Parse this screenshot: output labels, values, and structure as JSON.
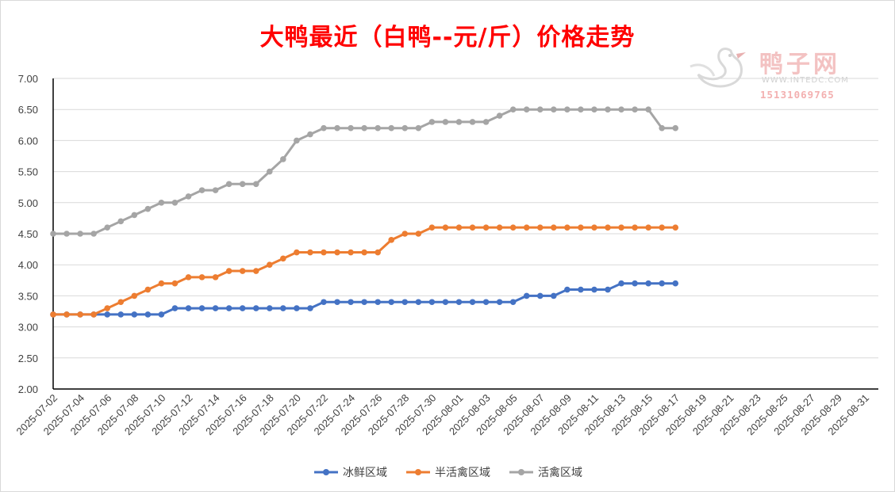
{
  "title": "大鸭最近（白鸭--元/斤）价格走势",
  "watermark": {
    "brand": "鸭子网",
    "url": "WWW.INTEDC.COM",
    "phone": "15131069765"
  },
  "chart_data": {
    "type": "line",
    "title": "大鸭最近（白鸭--元/斤）价格走势",
    "xlabel": "",
    "ylabel": "",
    "ylim": [
      2.0,
      7.0
    ],
    "yticks": [
      "7.00",
      "6.50",
      "6.00",
      "5.50",
      "5.00",
      "4.50",
      "4.00",
      "3.50",
      "3.00",
      "2.50",
      "2.00"
    ],
    "x_tick_labels": [
      "2025-07-02",
      "2025-07-04",
      "2025-07-06",
      "2025-07-08",
      "2025-07-10",
      "2025-07-12",
      "2025-07-14",
      "2025-07-16",
      "2025-07-18",
      "2025-07-20",
      "2025-07-22",
      "2025-07-24",
      "2025-07-26",
      "2025-07-28",
      "2025-07-30",
      "2025-08-01",
      "2025-08-03",
      "2025-08-05",
      "2025-08-07",
      "2025-08-09",
      "2025-08-11",
      "2025-08-13",
      "2025-08-15",
      "2025-08-17",
      "2025-08-19",
      "2025-08-21",
      "2025-08-23",
      "2025-08-25",
      "2025-08-27",
      "2025-08-29",
      "2025-08-31"
    ],
    "x_range": [
      "2025-07-02",
      "2025-08-31"
    ],
    "x": [
      "2025-07-02",
      "2025-07-03",
      "2025-07-04",
      "2025-07-05",
      "2025-07-06",
      "2025-07-07",
      "2025-07-08",
      "2025-07-09",
      "2025-07-10",
      "2025-07-11",
      "2025-07-12",
      "2025-07-13",
      "2025-07-14",
      "2025-07-15",
      "2025-07-16",
      "2025-07-17",
      "2025-07-18",
      "2025-07-19",
      "2025-07-20",
      "2025-07-21",
      "2025-07-22",
      "2025-07-23",
      "2025-07-24",
      "2025-07-25",
      "2025-07-26",
      "2025-07-27",
      "2025-07-28",
      "2025-07-29",
      "2025-07-30",
      "2025-07-31",
      "2025-08-01",
      "2025-08-02",
      "2025-08-03",
      "2025-08-04",
      "2025-08-05",
      "2025-08-06",
      "2025-08-07",
      "2025-08-08",
      "2025-08-09",
      "2025-08-10",
      "2025-08-11",
      "2025-08-12",
      "2025-08-13",
      "2025-08-14",
      "2025-08-15",
      "2025-08-16",
      "2025-08-17"
    ],
    "series": [
      {
        "name": "冰鲜区域",
        "color": "#4472c4",
        "values": [
          3.2,
          3.2,
          3.2,
          3.2,
          3.2,
          3.2,
          3.2,
          3.2,
          3.2,
          3.3,
          3.3,
          3.3,
          3.3,
          3.3,
          3.3,
          3.3,
          3.3,
          3.3,
          3.3,
          3.3,
          3.4,
          3.4,
          3.4,
          3.4,
          3.4,
          3.4,
          3.4,
          3.4,
          3.4,
          3.4,
          3.4,
          3.4,
          3.4,
          3.4,
          3.4,
          3.5,
          3.5,
          3.5,
          3.6,
          3.6,
          3.6,
          3.6,
          3.7,
          3.7,
          3.7,
          3.7,
          3.7
        ]
      },
      {
        "name": "半活禽区域",
        "color": "#ed7d31",
        "values": [
          3.2,
          3.2,
          3.2,
          3.2,
          3.3,
          3.4,
          3.5,
          3.6,
          3.7,
          3.7,
          3.8,
          3.8,
          3.8,
          3.9,
          3.9,
          3.9,
          4.0,
          4.1,
          4.2,
          4.2,
          4.2,
          4.2,
          4.2,
          4.2,
          4.2,
          4.4,
          4.5,
          4.5,
          4.6,
          4.6,
          4.6,
          4.6,
          4.6,
          4.6,
          4.6,
          4.6,
          4.6,
          4.6,
          4.6,
          4.6,
          4.6,
          4.6,
          4.6,
          4.6,
          4.6,
          4.6,
          4.6
        ]
      },
      {
        "name": "活禽区域",
        "color": "#a5a5a5",
        "values": [
          4.5,
          4.5,
          4.5,
          4.5,
          4.6,
          4.7,
          4.8,
          4.9,
          5.0,
          5.0,
          5.1,
          5.2,
          5.2,
          5.3,
          5.3,
          5.3,
          5.5,
          5.7,
          6.0,
          6.1,
          6.2,
          6.2,
          6.2,
          6.2,
          6.2,
          6.2,
          6.2,
          6.2,
          6.3,
          6.3,
          6.3,
          6.3,
          6.3,
          6.4,
          6.5,
          6.5,
          6.5,
          6.5,
          6.5,
          6.5,
          6.5,
          6.5,
          6.5,
          6.5,
          6.5,
          6.2,
          6.2
        ]
      }
    ],
    "grid": true,
    "legend_position": "bottom"
  }
}
